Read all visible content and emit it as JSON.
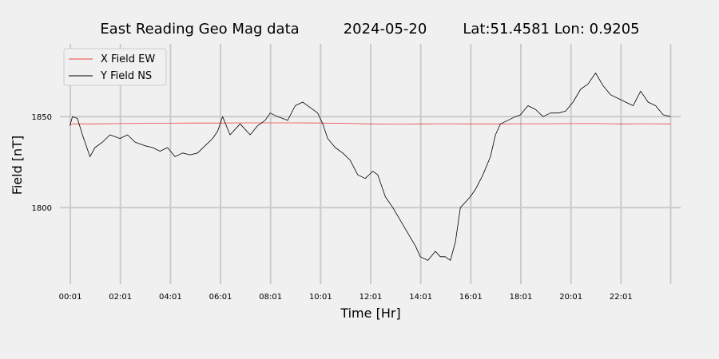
{
  "chart_data": {
    "type": "line",
    "title": {
      "name": "East Reading Geo Mag data",
      "date": "2024-05-20",
      "location": "Lat:51.4581  Lon: 0.9205"
    },
    "xlabel": "Time  [Hr]",
    "ylabel": "Field  [nT]",
    "xlim": [
      -0.4,
      24.4
    ],
    "ylim": [
      1758,
      1890
    ],
    "x_ticks": [
      {
        "x": 0.0167,
        "label": "00:01"
      },
      {
        "x": 2.0167,
        "label": "02:01"
      },
      {
        "x": 4.0167,
        "label": "04:01"
      },
      {
        "x": 6.0167,
        "label": "06:01"
      },
      {
        "x": 8.0167,
        "label": "08:01"
      },
      {
        "x": 10.0167,
        "label": "10:01"
      },
      {
        "x": 12.0167,
        "label": "12:01"
      },
      {
        "x": 14.0167,
        "label": "14:01"
      },
      {
        "x": 16.0167,
        "label": "16:01"
      },
      {
        "x": 18.0167,
        "label": "18:01"
      },
      {
        "x": 20.0167,
        "label": "20:01"
      },
      {
        "x": 22.0167,
        "label": "22:01"
      }
    ],
    "x_gridlines": [
      0.0167,
      2.0167,
      4.0167,
      6.0167,
      8.0167,
      10.0167,
      12.0167,
      14.0167,
      16.0167,
      18.0167,
      20.0167,
      22.0167,
      24.0
    ],
    "y_ticks": [
      {
        "y": 1800,
        "label": "1800"
      },
      {
        "y": 1850,
        "label": "1850"
      }
    ],
    "grid": true,
    "legend_position": "top-left",
    "series": [
      {
        "name": "X Field EW",
        "color": "#ee4444",
        "x": [
          0.0,
          0.1,
          0.5,
          1,
          2,
          3,
          4,
          5,
          6,
          7,
          8,
          9,
          10,
          11,
          12,
          13,
          14,
          15,
          16,
          17,
          18,
          19,
          20,
          21,
          22,
          23,
          24
        ],
        "y": [
          1845.5,
          1846.0,
          1846.0,
          1846.0,
          1846.2,
          1846.3,
          1846.4,
          1846.5,
          1846.5,
          1846.6,
          1846.6,
          1846.6,
          1846.5,
          1846.3,
          1846.0,
          1845.9,
          1846.0,
          1846.1,
          1846.0,
          1846.0,
          1846.1,
          1846.1,
          1846.2,
          1846.2,
          1846.0,
          1846.1,
          1846.0
        ]
      },
      {
        "name": "Y Field NS",
        "color": "#000000",
        "x": [
          0.0,
          0.1,
          0.3,
          0.5,
          0.8,
          1.0,
          1.3,
          1.6,
          2.0,
          2.3,
          2.6,
          3.0,
          3.3,
          3.6,
          3.9,
          4.2,
          4.5,
          4.8,
          5.1,
          5.4,
          5.7,
          5.9,
          6.1,
          6.4,
          6.8,
          7.2,
          7.5,
          7.8,
          8.0,
          8.3,
          8.7,
          9.0,
          9.3,
          9.6,
          9.9,
          10.1,
          10.3,
          10.6,
          10.9,
          11.2,
          11.5,
          11.8,
          12.1,
          12.3,
          12.6,
          12.9,
          13.2,
          13.5,
          13.8,
          14.0,
          14.3,
          14.6,
          14.8,
          15.0,
          15.2,
          15.4,
          15.6,
          15.8,
          16.0,
          16.2,
          16.5,
          16.8,
          17.0,
          17.2,
          17.5,
          17.8,
          18.0,
          18.3,
          18.6,
          18.9,
          19.2,
          19.5,
          19.8,
          20.1,
          20.4,
          20.7,
          21.0,
          21.3,
          21.6,
          21.9,
          22.2,
          22.5,
          22.8,
          23.1,
          23.4,
          23.7,
          24.0
        ],
        "y": [
          1845,
          1850,
          1849,
          1840,
          1828,
          1833,
          1836,
          1840,
          1838,
          1840,
          1836,
          1834,
          1833,
          1831,
          1833,
          1828,
          1830,
          1829,
          1830,
          1834,
          1838,
          1842,
          1850,
          1840,
          1846,
          1840,
          1845,
          1848,
          1852,
          1850,
          1848,
          1856,
          1858,
          1855,
          1852,
          1846,
          1838,
          1833,
          1830,
          1826,
          1818,
          1816,
          1820,
          1818,
          1806,
          1800,
          1793,
          1786,
          1779,
          1773,
          1771,
          1776,
          1773,
          1773,
          1771,
          1781,
          1800,
          1803,
          1806,
          1810,
          1818,
          1828,
          1840,
          1846,
          1848,
          1850,
          1851,
          1856,
          1854,
          1850,
          1852,
          1852,
          1853,
          1858,
          1865,
          1868,
          1874,
          1867,
          1862,
          1860,
          1858,
          1856,
          1864,
          1858,
          1856,
          1851,
          1850
        ]
      }
    ]
  }
}
